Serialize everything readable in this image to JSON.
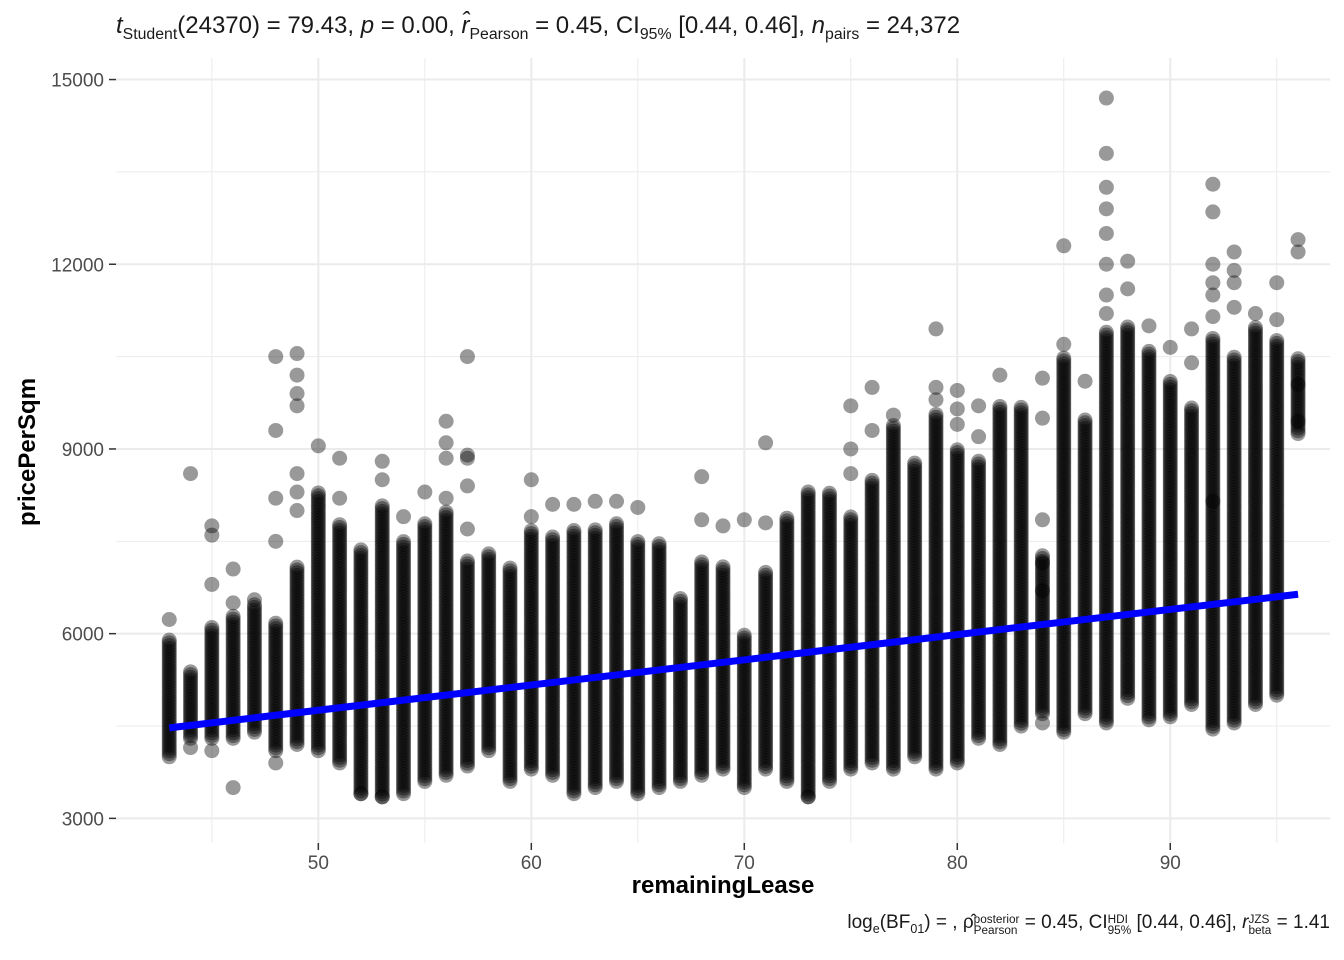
{
  "subtitle": {
    "t_sym": "t",
    "t_sub": "Student",
    "t_rest": "(24370) = 79.43, ",
    "p_sym": "p",
    "p_rest": " = 0.00, ",
    "r_sym": "r̂",
    "r_sub": "Pearson",
    "r_rest": " = 0.45, CI",
    "ci_sub": "95%",
    "ci_rest": " [0.44, 0.46], ",
    "n_sym": "n",
    "n_sub": "pairs",
    "n_rest": " = 24,372"
  },
  "caption": {
    "log_a": "log",
    "log_sub": "e",
    "log_b": "(BF",
    "bf_sub": "01",
    "log_c": ") = , ",
    "rho_sym": "ρ̂",
    "rho_sup": "posterior",
    "rho_sub": "Pearson",
    "rho_rest": " = 0.45, CI",
    "hdi_sup": "HDI",
    "hdi_sub": "95%",
    "hdi_rest": " [0.44, 0.46], ",
    "rb_sym": "r",
    "rb_sup": "JZS",
    "rb_sub": "beta",
    "rb_rest": " = 1.41"
  },
  "chart_data": {
    "type": "scatter",
    "xlabel": "remainingLease",
    "ylabel": "pricePerSqm",
    "xlim": [
      40.5,
      97.5
    ],
    "ylim": [
      2600,
      15350
    ],
    "x_ticks": [
      50,
      60,
      70,
      80,
      90
    ],
    "y_ticks": [
      3000,
      6000,
      9000,
      12000,
      15000
    ],
    "grid": true,
    "point_color": "#000000",
    "point_alpha": 0.4,
    "regression_line": {
      "color": "#0000ff",
      "x": [
        43,
        96
      ],
      "y": [
        4470,
        6640
      ]
    },
    "columns": [
      {
        "x": 43,
        "lo": 4050,
        "hi": 5900,
        "out": [
          6230,
          4000
        ]
      },
      {
        "x": 44,
        "lo": 4300,
        "hi": 5400,
        "out": [
          8600,
          4150
        ]
      },
      {
        "x": 45,
        "lo": 4300,
        "hi": 6100,
        "out": [
          7750,
          7600,
          6800,
          4100
        ]
      },
      {
        "x": 46,
        "lo": 4300,
        "hi": 6300,
        "out": [
          7050,
          6500,
          3500
        ]
      },
      {
        "x": 47,
        "lo": 4400,
        "hi": 6500,
        "out": [
          6550
        ]
      },
      {
        "x": 48,
        "lo": 4100,
        "hi": 6200,
        "out": [
          10500,
          9300,
          8200,
          7500,
          3900
        ]
      },
      {
        "x": 49,
        "lo": 4200,
        "hi": 7100,
        "out": [
          10550,
          10200,
          9900,
          9700,
          8600,
          8300,
          8000
        ]
      },
      {
        "x": 50,
        "lo": 4100,
        "hi": 8300,
        "out": [
          9050
        ]
      },
      {
        "x": 51,
        "lo": 3900,
        "hi": 7800,
        "out": [
          8850,
          8200
        ]
      },
      {
        "x": 52,
        "lo": 3400,
        "hi": 7400,
        "out": [
          3400
        ]
      },
      {
        "x": 53,
        "lo": 3350,
        "hi": 8100,
        "out": [
          8800,
          8500,
          3350
        ]
      },
      {
        "x": 54,
        "lo": 3400,
        "hi": 7500,
        "out": [
          7900
        ]
      },
      {
        "x": 55,
        "lo": 3600,
        "hi": 7800,
        "out": [
          8300
        ]
      },
      {
        "x": 56,
        "lo": 3700,
        "hi": 8000,
        "out": [
          9450,
          9100,
          8850,
          8200
        ]
      },
      {
        "x": 57,
        "lo": 3850,
        "hi": 7200,
        "out": [
          10500,
          8900,
          8850,
          8400,
          7700
        ]
      },
      {
        "x": 58,
        "lo": 4100,
        "hi": 7300,
        "out": []
      },
      {
        "x": 59,
        "lo": 3600,
        "hi": 7100,
        "out": []
      },
      {
        "x": 60,
        "lo": 3800,
        "hi": 7700,
        "out": [
          8500,
          7900
        ]
      },
      {
        "x": 61,
        "lo": 3700,
        "hi": 7600,
        "out": [
          8100
        ]
      },
      {
        "x": 62,
        "lo": 3400,
        "hi": 7700,
        "out": [
          8100
        ]
      },
      {
        "x": 63,
        "lo": 3500,
        "hi": 7700,
        "out": [
          8150
        ]
      },
      {
        "x": 64,
        "lo": 3600,
        "hi": 7800,
        "out": [
          8150
        ]
      },
      {
        "x": 65,
        "lo": 3400,
        "hi": 7500,
        "out": [
          8050
        ]
      },
      {
        "x": 66,
        "lo": 3500,
        "hi": 7500,
        "out": []
      },
      {
        "x": 67,
        "lo": 3600,
        "hi": 6600,
        "out": []
      },
      {
        "x": 68,
        "lo": 3700,
        "hi": 7200,
        "out": [
          8550,
          7850
        ]
      },
      {
        "x": 69,
        "lo": 3800,
        "hi": 7100,
        "out": [
          7750
        ]
      },
      {
        "x": 70,
        "lo": 3500,
        "hi": 6000,
        "out": [
          7850
        ]
      },
      {
        "x": 71,
        "lo": 3800,
        "hi": 7000,
        "out": [
          9100,
          7800
        ]
      },
      {
        "x": 72,
        "lo": 3600,
        "hi": 7900,
        "out": []
      },
      {
        "x": 73,
        "lo": 3350,
        "hi": 8300,
        "out": [
          3350
        ]
      },
      {
        "x": 74,
        "lo": 3600,
        "hi": 8300,
        "out": []
      },
      {
        "x": 75,
        "lo": 3800,
        "hi": 7900,
        "out": [
          9700,
          9000,
          8600
        ]
      },
      {
        "x": 76,
        "lo": 3900,
        "hi": 8500,
        "out": [
          10000,
          9300
        ]
      },
      {
        "x": 77,
        "lo": 3800,
        "hi": 9400,
        "out": [
          9550
        ]
      },
      {
        "x": 78,
        "lo": 4000,
        "hi": 8800,
        "out": []
      },
      {
        "x": 79,
        "lo": 3800,
        "hi": 9600,
        "out": [
          10950,
          10000,
          9800
        ]
      },
      {
        "x": 80,
        "lo": 3900,
        "hi": 9000,
        "out": [
          9950,
          9650,
          9400
        ]
      },
      {
        "x": 81,
        "lo": 4300,
        "hi": 8800,
        "out": [
          9700,
          9200
        ]
      },
      {
        "x": 82,
        "lo": 4200,
        "hi": 9700,
        "out": [
          10200
        ]
      },
      {
        "x": 83,
        "lo": 4500,
        "hi": 9700,
        "out": []
      },
      {
        "x": 84,
        "lo": 4700,
        "hi": 7300,
        "out": [
          10150,
          9500,
          7850,
          7150,
          6700,
          4550
        ]
      },
      {
        "x": 85,
        "lo": 4400,
        "hi": 10500,
        "out": [
          12300,
          10700
        ]
      },
      {
        "x": 86,
        "lo": 4700,
        "hi": 9500,
        "out": [
          10100
        ]
      },
      {
        "x": 87,
        "lo": 4550,
        "hi": 10900,
        "out": [
          14700,
          13800,
          13250,
          12900,
          12500,
          12000,
          11500,
          11200
        ]
      },
      {
        "x": 88,
        "lo": 4950,
        "hi": 11000,
        "out": [
          12050,
          11600
        ]
      },
      {
        "x": 89,
        "lo": 4600,
        "hi": 10600,
        "out": [
          11000
        ]
      },
      {
        "x": 90,
        "lo": 4650,
        "hi": 10100,
        "out": [
          10650
        ]
      },
      {
        "x": 91,
        "lo": 4850,
        "hi": 9700,
        "out": [
          10950,
          10400
        ]
      },
      {
        "x": 92,
        "lo": 4450,
        "hi": 10800,
        "out": [
          13300,
          12850,
          12000,
          11700,
          11500,
          11150,
          8150
        ]
      },
      {
        "x": 93,
        "lo": 4550,
        "hi": 10500,
        "out": [
          12200,
          11900,
          11700,
          11300
        ]
      },
      {
        "x": 94,
        "lo": 4850,
        "hi": 11000,
        "out": [
          11200
        ]
      },
      {
        "x": 95,
        "lo": 5000,
        "hi": 10800,
        "out": [
          11700,
          11100
        ]
      },
      {
        "x": 96,
        "lo": 9250,
        "hi": 10500,
        "out": [
          12400,
          12200,
          10050,
          9450
        ]
      }
    ]
  }
}
